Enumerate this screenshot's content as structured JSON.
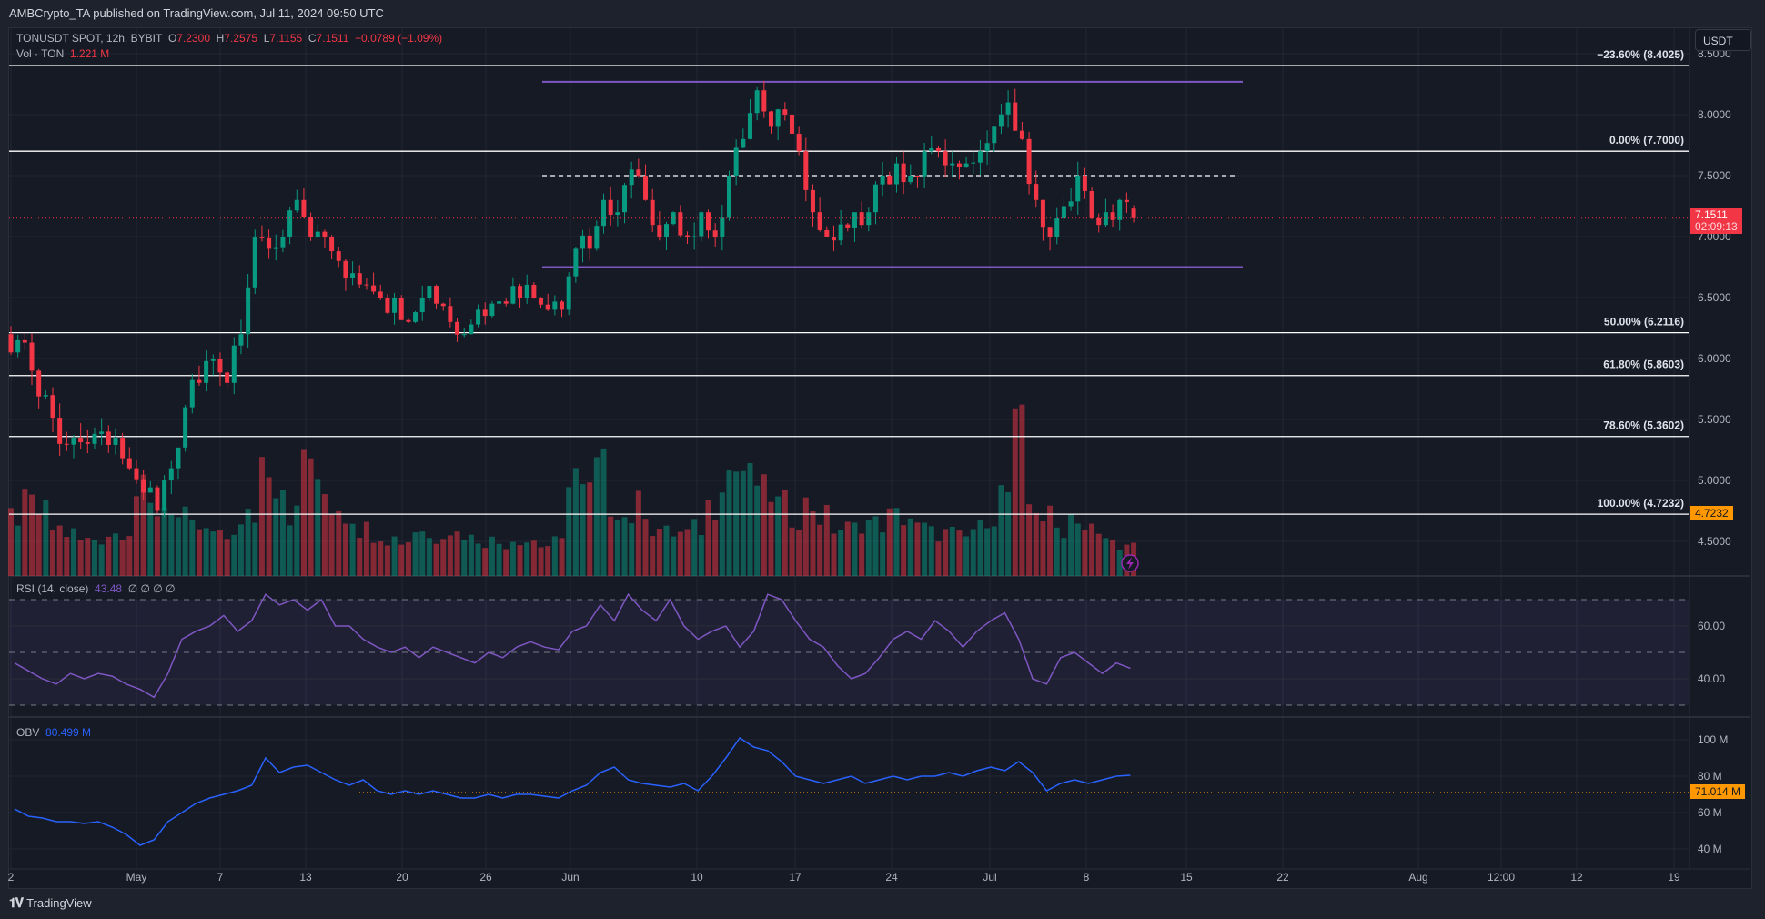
{
  "header": {
    "published": "AMBCrypto_TA published on TradingView.com, Jul 11, 2024 09:50 UTC"
  },
  "legend": {
    "symbol": "TONUSDT SPOT, 12h, BYBIT",
    "o_label": "O",
    "o": "7.2300",
    "h_label": "H",
    "h": "7.2575",
    "l_label": "L",
    "l": "7.1155",
    "c_label": "C",
    "c": "7.1511",
    "change": "−0.0789 (−1.09%)",
    "vol_label": "Vol · TON",
    "vol": "1.221 M"
  },
  "rsi_legend": {
    "label": "RSI (14, close)",
    "value": "43.48",
    "extra": "∅ ∅ ∅ ∅"
  },
  "obv_legend": {
    "label": "OBV",
    "value": "80.499 M"
  },
  "currency_button": "USDT",
  "price_axis": [
    "8.5000",
    "8.0000",
    "7.5000",
    "7.0000",
    "6.5000",
    "6.0000",
    "5.5000",
    "5.0000",
    "4.5000"
  ],
  "rsi_axis": [
    "60.00",
    "40.00"
  ],
  "obv_axis": [
    "100 M",
    "80 M",
    "60 M",
    "40 M"
  ],
  "current_price": {
    "value": "7.1511",
    "countdown": "02:09:13"
  },
  "fib_marker": "4.7232",
  "obv_marker": "71.014 M",
  "time_axis": [
    "2",
    "May",
    "7",
    "13",
    "20",
    "26",
    "Jun",
    "10",
    "17",
    "24",
    "Jul",
    "8",
    "15",
    "22",
    "Aug",
    "12:00",
    "12",
    "19"
  ],
  "fib_levels": [
    {
      "label": "−23.60% (8.4025)",
      "price": 8.4025
    },
    {
      "label": "0.00% (7.7000)",
      "price": 7.7
    },
    {
      "label": "50.00% (6.2116)",
      "price": 6.2116
    },
    {
      "label": "61.80% (5.8603)",
      "price": 5.8603
    },
    {
      "label": "78.60% (5.3602)",
      "price": 5.3602
    },
    {
      "label": "100.00% (4.7232)",
      "price": 4.7232
    }
  ],
  "range": {
    "top": 8.27,
    "mid": 7.5,
    "bottom": 6.75
  },
  "footer": {
    "brand": "TradingView"
  },
  "colors": {
    "up": "#089981",
    "down": "#f23645",
    "range": "#7e57c2",
    "rsi": "#7e57c2",
    "obv": "#2962ff",
    "marker": "#ff9800"
  },
  "chart_data": {
    "type": "candlestick",
    "start_date": "Apr 22",
    "interval": "1d key closes",
    "closes": [
      6.15,
      5.9,
      5.7,
      5.3,
      5.35,
      5.3,
      5.4,
      5.35,
      5.1,
      4.9,
      4.75,
      5.1,
      5.6,
      5.8,
      6.0,
      5.8,
      6.2,
      7.0,
      6.9,
      7.0,
      7.3,
      7.0,
      7.0,
      6.8,
      6.7,
      6.6,
      6.5,
      6.5,
      6.3,
      6.5,
      6.45,
      6.3,
      6.2,
      6.4,
      6.45,
      6.45,
      6.5,
      6.5,
      6.4,
      6.4,
      6.9,
      6.9,
      7.3,
      7.2,
      7.55,
      7.3,
      7.0,
      7.2,
      7.0,
      7.2,
      7.0,
      7.5,
      7.8,
      8.2,
      7.9,
      8.0,
      7.7,
      7.2,
      7.0,
      7.1,
      7.2,
      7.2,
      7.5,
      7.6,
      7.5,
      7.7,
      7.7,
      7.6,
      7.6,
      7.7,
      7.9,
      8.1,
      7.8,
      7.3,
      7.0,
      7.25,
      7.5,
      7.15,
      7.2,
      7.3,
      7.15
    ],
    "volumes": [
      2.5,
      3,
      2.7,
      2,
      1.8,
      1.5,
      1.6,
      1.8,
      2,
      3.5,
      2.8,
      3,
      2.4,
      2,
      1.8,
      1.6,
      2,
      2.5,
      5,
      4,
      2.6,
      5.2,
      3.5,
      3,
      2.6,
      2,
      1.8,
      1.6,
      1.5,
      2,
      1.6,
      2,
      1.8,
      1.6,
      1.5,
      1.4,
      1.6,
      1.5,
      1.3,
      1.4,
      4.5,
      3.5,
      4.5,
      3,
      2.5,
      3,
      2,
      1.8,
      1.8,
      2,
      3,
      4.5,
      4.5,
      4,
      3.5,
      3,
      2.5,
      3,
      2.5,
      2,
      2,
      2.3,
      2.2,
      2.5,
      2.5,
      2,
      1.8,
      1.8,
      1.6,
      2,
      2.6,
      3.5,
      6,
      3,
      2.5,
      2,
      2.6,
      2,
      1.6,
      1.4,
      1.2
    ],
    "rsi": [
      46,
      43,
      40,
      38,
      42,
      40,
      42,
      41,
      38,
      36,
      33,
      42,
      55,
      58,
      60,
      64,
      58,
      62,
      72,
      68,
      70,
      66,
      70,
      60,
      60,
      55,
      52,
      50,
      52,
      48,
      52,
      50,
      48,
      46,
      50,
      48,
      52,
      54,
      52,
      51,
      58,
      60,
      68,
      62,
      72,
      66,
      62,
      70,
      60,
      55,
      58,
      60,
      52,
      58,
      72,
      70,
      62,
      55,
      52,
      45,
      40,
      42,
      48,
      55,
      58,
      55,
      62,
      58,
      52,
      58,
      62,
      65,
      55,
      40,
      38,
      48,
      50,
      46,
      42,
      46,
      44
    ],
    "obv": [
      62,
      58,
      57,
      55,
      55,
      54,
      55,
      52,
      48,
      42,
      45,
      55,
      60,
      65,
      68,
      70,
      72,
      75,
      90,
      82,
      85,
      86,
      82,
      78,
      75,
      78,
      72,
      70,
      72,
      70,
      72,
      70,
      68,
      68,
      70,
      68,
      70,
      70,
      69,
      68,
      72,
      75,
      82,
      85,
      78,
      76,
      75,
      74,
      76,
      72,
      80,
      90,
      101,
      96,
      94,
      88,
      80,
      78,
      76,
      78,
      80,
      76,
      78,
      80,
      78,
      80,
      80,
      82,
      80,
      83,
      85,
      83,
      88,
      82,
      72,
      76,
      78,
      76,
      78,
      80,
      80.5
    ],
    "price_range": [
      4.3,
      8.6
    ],
    "rsi_range": [
      20,
      80
    ],
    "obv_range_m": [
      30,
      110
    ]
  }
}
